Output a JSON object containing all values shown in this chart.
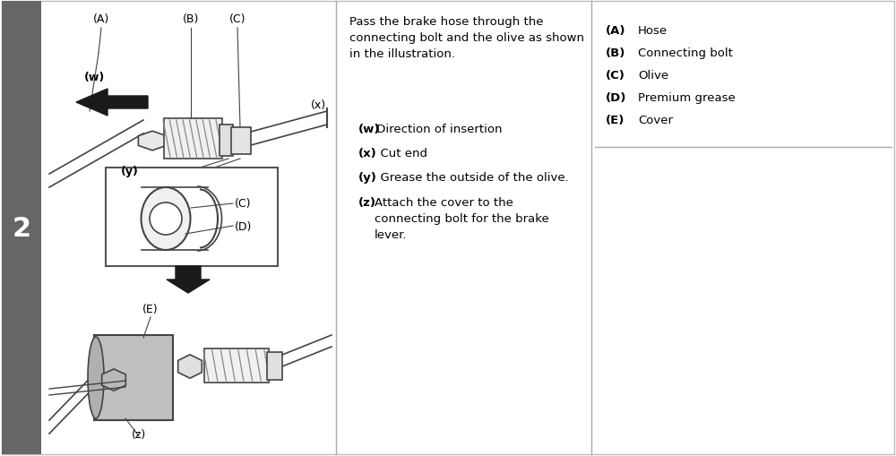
{
  "bg_color": "#ffffff",
  "border_color": "#bbbbbb",
  "step_bg_color": "#666666",
  "step_text": "2",
  "step_text_color": "#ffffff",
  "panel_divider_color": "#aaaaaa",
  "main_instruction": "Pass the brake hose through the\nconnecting bolt and the olive as shown\nin the illustration.",
  "item_w_bold": "(w)",
  "item_w_rest": " Direction of insertion",
  "item_x_bold": "(x)",
  "item_x_rest": "  Cut end",
  "item_y_bold": "(y)",
  "item_y_rest": "  Grease the outside of the olive.",
  "item_z_bold": "(z)",
  "item_z_rest": "  Attach the cover to the\n        connecting bolt for the brake\n        lever.",
  "legend_items": [
    [
      "(A)",
      "Hose"
    ],
    [
      "(B)",
      "Connecting bolt"
    ],
    [
      "(C)",
      "Olive"
    ],
    [
      "(D)",
      "Premium grease"
    ],
    [
      "(E)",
      "Cover"
    ]
  ],
  "label_A": "(A)",
  "label_B": "(B)",
  "label_C_top": "(C)",
  "label_w": "(w)",
  "label_x": "(x)",
  "label_y": "(y)",
  "label_C_inset": "(C)",
  "label_D_inset": "(D)",
  "label_E": "(E)",
  "label_z": "(z)"
}
